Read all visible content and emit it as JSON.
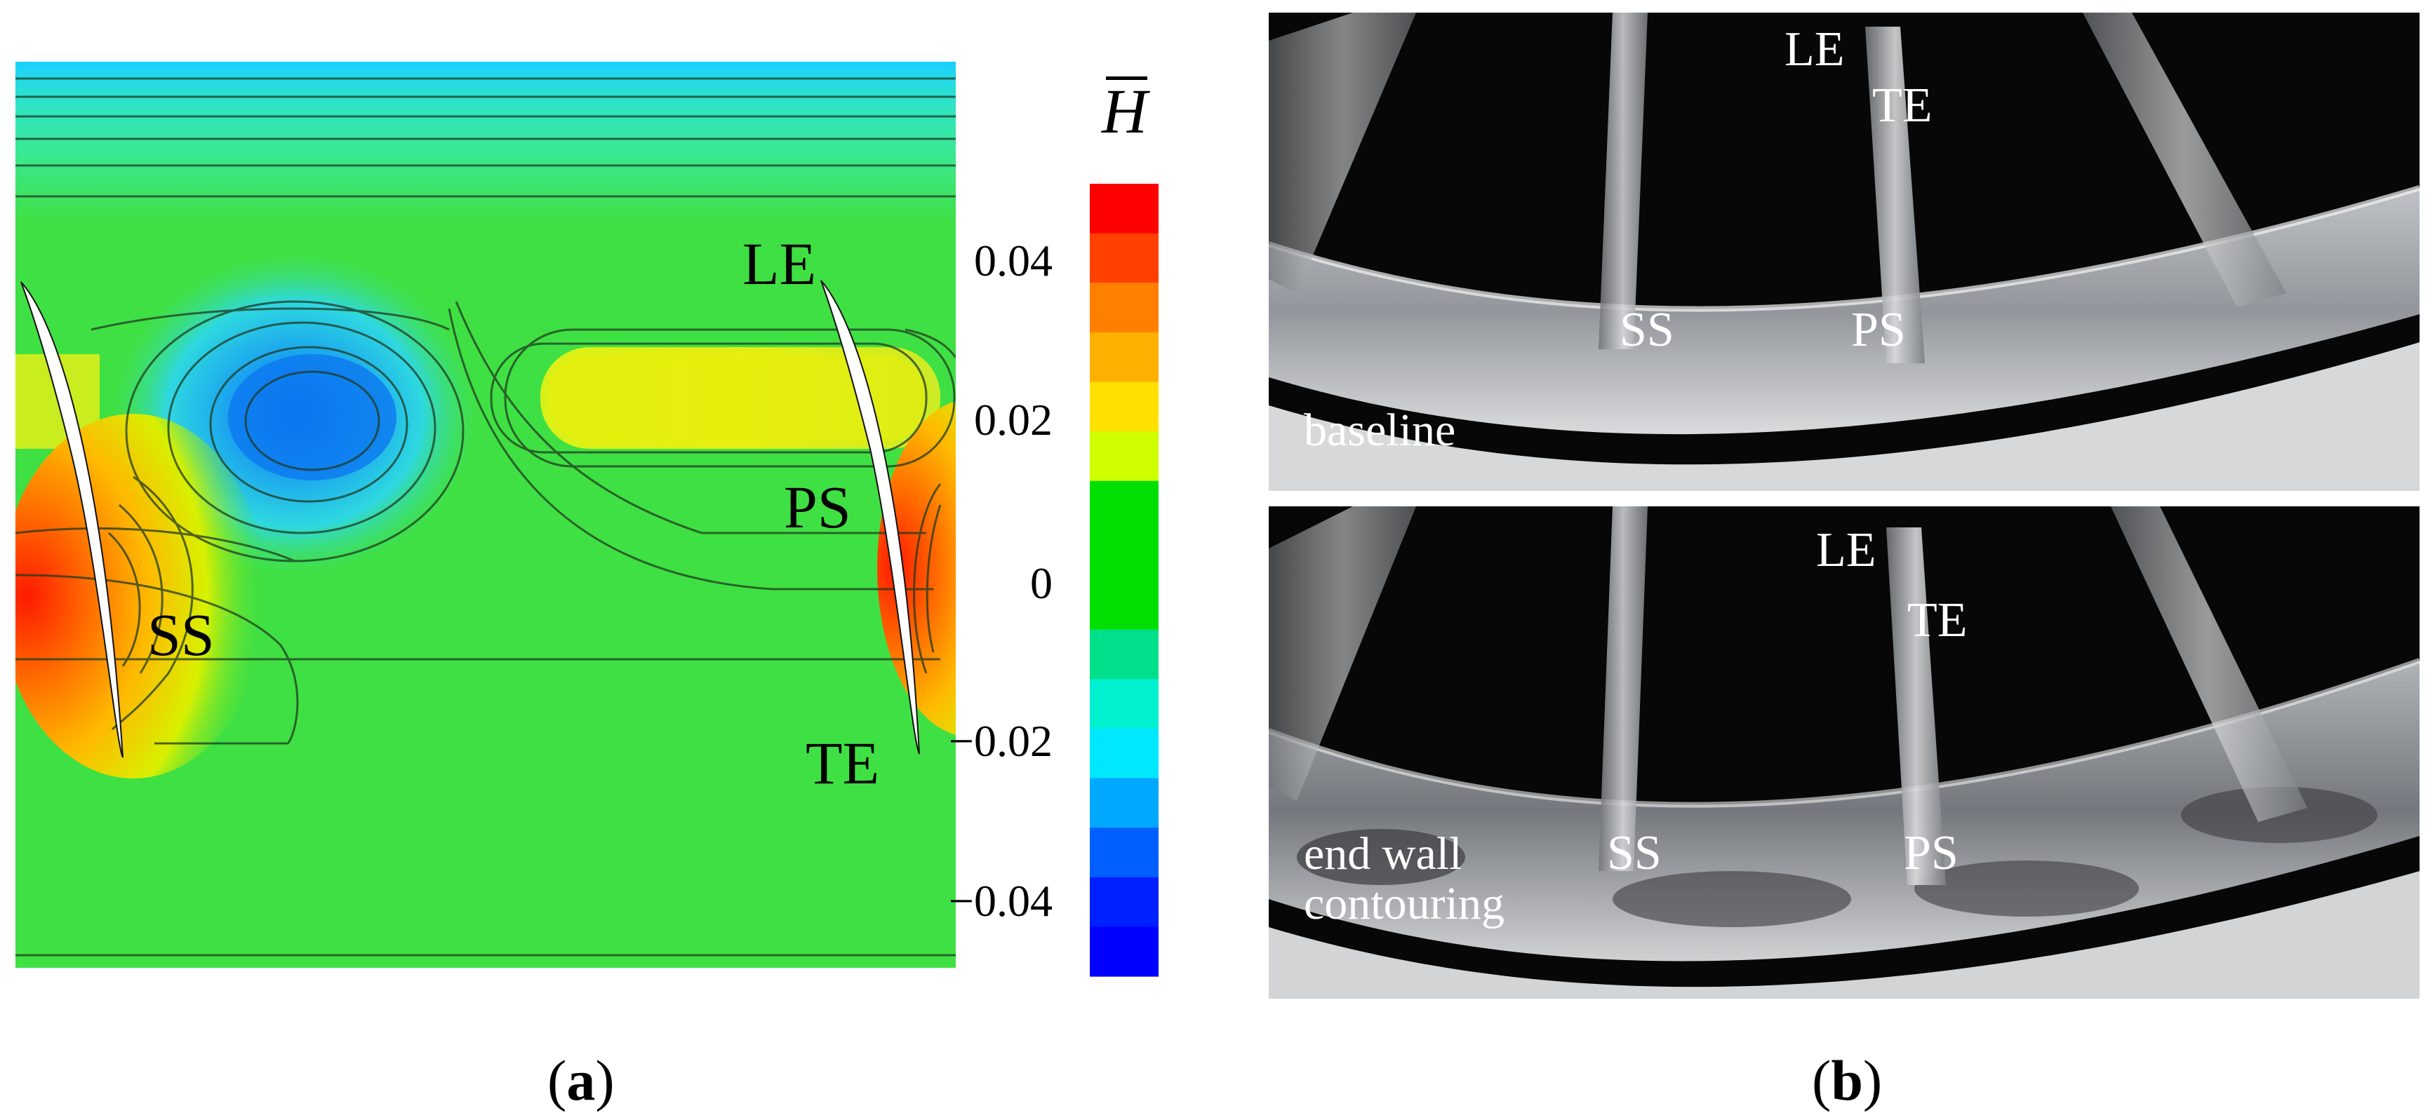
{
  "panel_a": {
    "labels": {
      "le": "LE",
      "ps": "PS",
      "ss": "SS",
      "te": "TE"
    },
    "colorbar": {
      "title": "H",
      "title_overbar": true,
      "ticks": [
        "0.04",
        "0.02",
        "0",
        "−0.02",
        "−0.04"
      ],
      "range": [
        -0.05,
        0.05
      ],
      "colors_top_to_bottom": [
        "#ff0000",
        "#ff4000",
        "#ff8000",
        "#ffb000",
        "#ffe000",
        "#d0ff00",
        "#00e000",
        "#00e000",
        "#00e000",
        "#00e08a",
        "#00f0d0",
        "#00e8ff",
        "#00a8ff",
        "#0060ff",
        "#0020ff",
        "#0000ff"
      ]
    },
    "caption_prefix": "(",
    "caption_letter": "a",
    "caption_suffix": ")"
  },
  "panel_b": {
    "top_photo": {
      "labels": {
        "le": "LE",
        "te": "TE",
        "ss": "SS",
        "ps": "PS"
      },
      "caption": "baseline"
    },
    "bottom_photo": {
      "labels": {
        "le": "LE",
        "te": "TE",
        "ss": "SS",
        "ps": "PS"
      },
      "caption": "end wall\ncontouring"
    },
    "caption_prefix": "(",
    "caption_letter": "b",
    "caption_suffix": ")"
  }
}
